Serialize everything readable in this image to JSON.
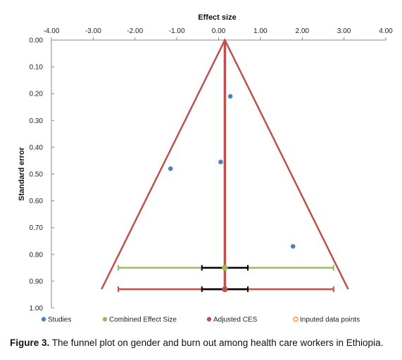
{
  "chart_data": {
    "type": "scatter",
    "title": "",
    "xlabel": "Effect size",
    "ylabel": "Standard error",
    "xlim": [
      -4.0,
      4.0
    ],
    "ylim": [
      0.0,
      1.0
    ],
    "y_inverted": true,
    "x_axis_position": "top",
    "x_ticks": [
      "-4.00",
      "-3.00",
      "-2.00",
      "-1.00",
      "0.00",
      "1.00",
      "2.00",
      "3.00",
      "4.00"
    ],
    "y_ticks": [
      "0.00",
      "0.10",
      "0.20",
      "0.30",
      "0.40",
      "0.50",
      "0.60",
      "0.70",
      "0.80",
      "0.90",
      "1.00"
    ],
    "grid": false,
    "legend_position": "bottom",
    "studies": [
      {
        "x": 0.28,
        "se": 0.21
      },
      {
        "x": -1.15,
        "se": 0.48
      },
      {
        "x": 0.05,
        "se": 0.455
      },
      {
        "x": 1.78,
        "se": 0.77
      }
    ],
    "funnel": {
      "apex_x": 0.15,
      "apex_se": 0.0,
      "base_se": 0.93,
      "base_left_x": -2.8,
      "base_right_x": 3.1
    },
    "combined_effect": {
      "x": 0.15,
      "se": 0.85,
      "ci": [
        -0.4,
        0.7
      ],
      "pi": [
        -2.4,
        2.75
      ]
    },
    "adjusted_ces": {
      "x": 0.15,
      "se": 0.93,
      "ci": [
        -0.4,
        0.7
      ],
      "pi": [
        -2.4,
        2.75
      ]
    },
    "legend": [
      {
        "label": "Studies",
        "color": "#4f81bd",
        "marker": "filled"
      },
      {
        "label": "Combined Effect Size",
        "color": "#9bbb59",
        "marker": "filled"
      },
      {
        "label": "Adjusted CES",
        "color": "#c0504d",
        "marker": "filled"
      },
      {
        "label": "Inputed data points",
        "color": "#f79646",
        "marker": "hollow"
      }
    ],
    "colors": {
      "studies": "#4f81bd",
      "combined": "#9bbb59",
      "adjusted": "#c0504d",
      "imputed": "#f79646",
      "ci": "#000000"
    }
  },
  "caption": {
    "prefix": "Figure 3.",
    "text": " The funnel plot on gender and burn out among health care workers in Ethiopia."
  }
}
